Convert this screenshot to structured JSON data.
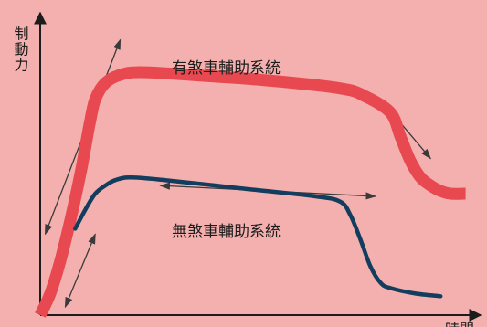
{
  "chart_data": {
    "type": "line",
    "title": "",
    "ylabel": "制動力",
    "xlabel": "時間",
    "series": [
      {
        "name": "有煞車輔助系統",
        "color": "#e8484f",
        "x": [
          0,
          2,
          4,
          6,
          8,
          9,
          10,
          11,
          13,
          16,
          20,
          30,
          45,
          60,
          65,
          70,
          72,
          74,
          76,
          78,
          80,
          82,
          85
        ],
        "y": [
          0,
          8,
          20,
          35,
          52,
          62,
          72,
          80,
          86,
          89,
          90,
          89,
          87,
          84,
          81,
          75,
          66,
          57,
          51,
          48,
          46,
          45,
          45
        ]
      },
      {
        "name": "無煞車輔助系統",
        "color": "#123d5e",
        "x": [
          7,
          9,
          11,
          13,
          15,
          18,
          25,
          40,
          55,
          60,
          62,
          64,
          66,
          68,
          70,
          75,
          80
        ],
        "y": [
          32,
          39,
          45,
          48,
          50,
          51,
          50,
          47,
          44,
          42,
          37,
          28,
          18,
          12,
          10,
          8,
          7
        ]
      }
    ],
    "arrows": [
      {
        "from": [
          1,
          30
        ],
        "to": [
          16,
          102
        ]
      },
      {
        "from": [
          5,
          3
        ],
        "to": [
          11,
          30
        ]
      },
      {
        "from": [
          24,
          48
        ],
        "to": [
          67,
          44
        ]
      },
      {
        "from": [
          68,
          80
        ],
        "to": [
          78,
          58
        ]
      }
    ],
    "xlim": [
      0,
      88
    ],
    "ylim": [
      0,
      112
    ],
    "grid": false,
    "legend": "inline labels"
  }
}
